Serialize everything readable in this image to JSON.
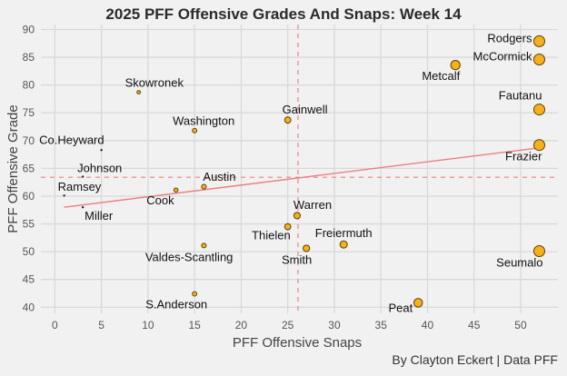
{
  "chart_data": {
    "type": "scatter",
    "title": "2025 PFF Offensive Grades And Snaps: Week 14",
    "xlabel": "PFF Offensive Snaps",
    "ylabel": "PFF Offensive Grade",
    "caption": "By Clayton Eckert | Data PFF",
    "xlim": [
      -1.5,
      54
    ],
    "ylim": [
      38.9,
      90.9
    ],
    "xticks": [
      0,
      5,
      10,
      15,
      20,
      25,
      30,
      35,
      40,
      45,
      50
    ],
    "yticks": [
      40,
      45,
      50,
      55,
      60,
      65,
      70,
      75,
      80,
      85,
      90
    ],
    "grid": true,
    "mean_x": 26.1,
    "mean_y": 63.4,
    "trendline": {
      "x": [
        1,
        52
      ],
      "y": [
        58.0,
        68.7
      ]
    },
    "colors": {
      "point_fill": "#f5b11d",
      "point_stroke": "#5a4200",
      "reference": "#f08080",
      "trend": "#e88080"
    },
    "points": [
      {
        "name": "Rodgers",
        "snaps": 52,
        "grade": 87.9,
        "label_pos": "left"
      },
      {
        "name": "McCormick",
        "snaps": 52,
        "grade": 84.6,
        "label_pos": "left"
      },
      {
        "name": "Metcalf",
        "snaps": 43,
        "grade": 83.6,
        "label_pos": "below-left"
      },
      {
        "name": "Fautanu",
        "snaps": 52,
        "grade": 75.6,
        "label_pos": "above-left"
      },
      {
        "name": "Frazier",
        "snaps": 52,
        "grade": 69.2,
        "label_pos": "below-left"
      },
      {
        "name": "Seumalo",
        "snaps": 52,
        "grade": 50.1,
        "label_pos": "below-left"
      },
      {
        "name": "Peat",
        "snaps": 39,
        "grade": 40.8,
        "label_pos": "below-left"
      },
      {
        "name": "Freiermuth",
        "snaps": 31,
        "grade": 51.3,
        "label_pos": "above"
      },
      {
        "name": "Smith",
        "snaps": 27,
        "grade": 50.6,
        "label_pos": "below-left"
      },
      {
        "name": "Warren",
        "snaps": 26,
        "grade": 56.5,
        "label_pos": "above-right"
      },
      {
        "name": "Thielen",
        "snaps": 25,
        "grade": 54.5,
        "label_pos": "below-left"
      },
      {
        "name": "Gainwell",
        "snaps": 25,
        "grade": 73.7,
        "label_pos": "above-right"
      },
      {
        "name": "Washington",
        "snaps": 15,
        "grade": 71.8,
        "label_pos": "above-right"
      },
      {
        "name": "Skowronek",
        "snaps": 9,
        "grade": 78.7,
        "label_pos": "above-right"
      },
      {
        "name": "Austin",
        "snaps": 16,
        "grade": 61.7,
        "label_pos": "above-right"
      },
      {
        "name": "Cook",
        "snaps": 13,
        "grade": 61.1,
        "label_pos": "below-left"
      },
      {
        "name": "Valdes-Scantling",
        "snaps": 16,
        "grade": 51.1,
        "label_pos": "below-left"
      },
      {
        "name": "S.Anderson",
        "snaps": 15,
        "grade": 42.4,
        "label_pos": "below-left"
      },
      {
        "name": "Co.Heyward",
        "snaps": 5,
        "grade": 68.3,
        "label_pos": "above-left"
      },
      {
        "name": "Johnson",
        "snaps": 3,
        "grade": 63.5,
        "label_pos": "above-right"
      },
      {
        "name": "Ramsey",
        "snaps": 1,
        "grade": 60.1,
        "label_pos": "above-right"
      },
      {
        "name": "Miller",
        "snaps": 3,
        "grade": 58.0,
        "label_pos": "below-right"
      }
    ]
  }
}
